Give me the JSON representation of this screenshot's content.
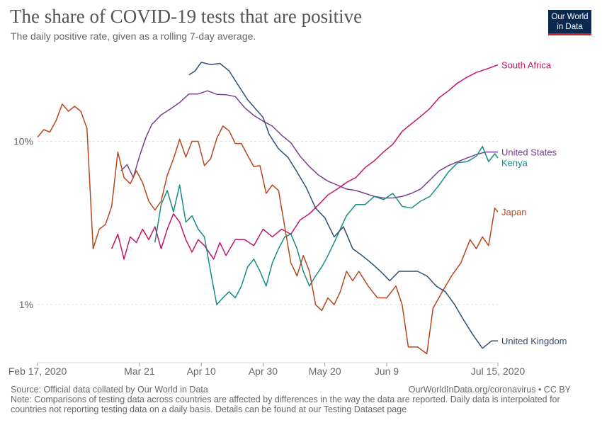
{
  "header": {
    "title": "The share of COVID-19 tests that are positive",
    "subtitle": "The daily positive rate, given as a rolling 7-day average."
  },
  "logo": {
    "line1": "Our World",
    "line2": "in Data"
  },
  "footer": {
    "source": "Source: Official data collated by Our World in Data",
    "url": "OurWorldInData.org/coronavirus • CC BY",
    "note_line1": "Note: Comparisons of testing data across countries are affected by differences in the way the data are reported. Daily data is interpolated for",
    "note_line2": "countries not reporting testing data on a daily basis. Details can be found at our Testing Dataset page"
  },
  "chart_data": {
    "type": "line",
    "y_scale": "log",
    "y_unit": "%",
    "ylim": [
      0.45,
      33
    ],
    "xlim": [
      "2020-02-17",
      "2020-07-15"
    ],
    "x_ticks": [
      {
        "date": "2020-02-17",
        "label": "Feb 17, 2020"
      },
      {
        "date": "2020-03-21",
        "label": "Mar 21"
      },
      {
        "date": "2020-04-10",
        "label": "Apr 10"
      },
      {
        "date": "2020-04-30",
        "label": "Apr 30"
      },
      {
        "date": "2020-05-20",
        "label": "May 20"
      },
      {
        "date": "2020-06-09",
        "label": "Jun 9"
      },
      {
        "date": "2020-07-15",
        "label": "Jul 15, 2020"
      }
    ],
    "y_ticks": [
      {
        "value": 1,
        "label": "1%"
      },
      {
        "value": 10,
        "label": "10%"
      }
    ],
    "grid": "horizontal dashed",
    "legend": "inline labels at line ends",
    "series": [
      {
        "name": "South Africa",
        "color": "#c4136d",
        "points": [
          [
            "2020-03-12",
            2.2
          ],
          [
            "2020-03-14",
            2.7
          ],
          [
            "2020-03-16",
            1.9
          ],
          [
            "2020-03-18",
            2.6
          ],
          [
            "2020-03-20",
            2.4
          ],
          [
            "2020-03-22",
            2.9
          ],
          [
            "2020-03-24",
            2.5
          ],
          [
            "2020-03-26",
            3.0
          ],
          [
            "2020-03-28",
            2.2
          ],
          [
            "2020-03-30",
            2.9
          ],
          [
            "2020-04-01",
            3.6
          ],
          [
            "2020-04-03",
            3.2
          ],
          [
            "2020-04-05",
            2.5
          ],
          [
            "2020-04-07",
            2.1
          ],
          [
            "2020-04-09",
            2.5
          ],
          [
            "2020-04-11",
            2.3
          ],
          [
            "2020-04-14",
            1.9
          ],
          [
            "2020-04-16",
            2.4
          ],
          [
            "2020-04-18",
            2.0
          ],
          [
            "2020-04-21",
            2.5
          ],
          [
            "2020-04-24",
            2.5
          ],
          [
            "2020-04-27",
            2.3
          ],
          [
            "2020-04-30",
            2.9
          ],
          [
            "2020-05-03",
            2.6
          ],
          [
            "2020-05-06",
            2.9
          ],
          [
            "2020-05-09",
            2.7
          ],
          [
            "2020-05-12",
            3.3
          ],
          [
            "2020-05-15",
            3.6
          ],
          [
            "2020-05-18",
            4.1
          ],
          [
            "2020-05-21",
            4.7
          ],
          [
            "2020-05-24",
            5.1
          ],
          [
            "2020-05-27",
            5.6
          ],
          [
            "2020-05-30",
            6.0
          ],
          [
            "2020-06-02",
            6.9
          ],
          [
            "2020-06-05",
            7.6
          ],
          [
            "2020-06-08",
            8.6
          ],
          [
            "2020-06-11",
            9.6
          ],
          [
            "2020-06-14",
            11.5
          ],
          [
            "2020-06-17",
            12.8
          ],
          [
            "2020-06-20",
            14.2
          ],
          [
            "2020-06-23",
            15.9
          ],
          [
            "2020-06-26",
            18.5
          ],
          [
            "2020-06-29",
            20.4
          ],
          [
            "2020-07-02",
            22.8
          ],
          [
            "2020-07-05",
            24.7
          ],
          [
            "2020-07-08",
            26.4
          ],
          [
            "2020-07-11",
            27.6
          ],
          [
            "2020-07-15",
            29.4
          ]
        ]
      },
      {
        "name": "United States",
        "color": "#7a3d91",
        "points": [
          [
            "2020-03-15",
            6.6
          ],
          [
            "2020-03-17",
            7.2
          ],
          [
            "2020-03-19",
            6.0
          ],
          [
            "2020-03-21",
            8.1
          ],
          [
            "2020-03-23",
            10.5
          ],
          [
            "2020-03-25",
            12.7
          ],
          [
            "2020-03-28",
            14.5
          ],
          [
            "2020-03-31",
            15.8
          ],
          [
            "2020-04-03",
            17.3
          ],
          [
            "2020-04-06",
            19.5
          ],
          [
            "2020-04-09",
            19.5
          ],
          [
            "2020-04-12",
            20.4
          ],
          [
            "2020-04-15",
            19.4
          ],
          [
            "2020-04-18",
            19.3
          ],
          [
            "2020-04-21",
            18.8
          ],
          [
            "2020-04-24",
            16.1
          ],
          [
            "2020-04-27",
            14.4
          ],
          [
            "2020-04-30",
            13.3
          ],
          [
            "2020-05-03",
            12.4
          ],
          [
            "2020-05-06",
            10.9
          ],
          [
            "2020-05-09",
            9.8
          ],
          [
            "2020-05-12",
            8.1
          ],
          [
            "2020-05-15",
            7.0
          ],
          [
            "2020-05-18",
            6.2
          ],
          [
            "2020-05-21",
            5.7
          ],
          [
            "2020-05-24",
            5.4
          ],
          [
            "2020-05-27",
            5.1
          ],
          [
            "2020-05-30",
            5.0
          ],
          [
            "2020-06-02",
            4.8
          ],
          [
            "2020-06-05",
            4.6
          ],
          [
            "2020-06-08",
            4.5
          ],
          [
            "2020-06-11",
            4.5
          ],
          [
            "2020-06-14",
            4.6
          ],
          [
            "2020-06-17",
            4.8
          ],
          [
            "2020-06-20",
            5.1
          ],
          [
            "2020-06-23",
            5.8
          ],
          [
            "2020-06-26",
            6.6
          ],
          [
            "2020-06-29",
            7.1
          ],
          [
            "2020-07-02",
            7.5
          ],
          [
            "2020-07-05",
            7.9
          ],
          [
            "2020-07-08",
            8.3
          ],
          [
            "2020-07-11",
            8.6
          ],
          [
            "2020-07-15",
            8.6
          ]
        ]
      },
      {
        "name": "Kenya",
        "color": "#178c83",
        "points": [
          [
            "2020-03-26",
            2.4
          ],
          [
            "2020-03-28",
            4.1
          ],
          [
            "2020-03-30",
            5.0
          ],
          [
            "2020-04-01",
            3.7
          ],
          [
            "2020-04-03",
            5.4
          ],
          [
            "2020-04-05",
            3.2
          ],
          [
            "2020-04-07",
            3.5
          ],
          [
            "2020-04-09",
            2.9
          ],
          [
            "2020-04-11",
            2.6
          ],
          [
            "2020-04-13",
            1.6
          ],
          [
            "2020-04-15",
            1.0
          ],
          [
            "2020-04-17",
            1.1
          ],
          [
            "2020-04-19",
            1.2
          ],
          [
            "2020-04-21",
            1.1
          ],
          [
            "2020-04-23",
            1.3
          ],
          [
            "2020-04-25",
            1.7
          ],
          [
            "2020-04-27",
            1.9
          ],
          [
            "2020-04-29",
            1.6
          ],
          [
            "2020-05-01",
            1.3
          ],
          [
            "2020-05-03",
            1.8
          ],
          [
            "2020-05-05",
            2.2
          ],
          [
            "2020-05-07",
            2.6
          ],
          [
            "2020-05-09",
            2.7
          ],
          [
            "2020-05-11",
            2.2
          ],
          [
            "2020-05-13",
            1.6
          ],
          [
            "2020-05-15",
            1.3
          ],
          [
            "2020-05-17",
            1.5
          ],
          [
            "2020-05-19",
            1.7
          ],
          [
            "2020-05-21",
            2.0
          ],
          [
            "2020-05-23",
            2.4
          ],
          [
            "2020-05-25",
            2.9
          ],
          [
            "2020-05-27",
            3.5
          ],
          [
            "2020-05-30",
            4.1
          ],
          [
            "2020-06-02",
            4.1
          ],
          [
            "2020-06-05",
            4.6
          ],
          [
            "2020-06-08",
            4.4
          ],
          [
            "2020-06-11",
            4.8
          ],
          [
            "2020-06-14",
            4.0
          ],
          [
            "2020-06-17",
            3.9
          ],
          [
            "2020-06-20",
            4.3
          ],
          [
            "2020-06-23",
            4.6
          ],
          [
            "2020-06-26",
            5.4
          ],
          [
            "2020-06-29",
            6.5
          ],
          [
            "2020-07-02",
            7.4
          ],
          [
            "2020-07-05",
            7.5
          ],
          [
            "2020-07-08",
            8.1
          ],
          [
            "2020-07-10",
            9.3
          ],
          [
            "2020-07-12",
            7.5
          ],
          [
            "2020-07-14",
            8.4
          ],
          [
            "2020-07-15",
            7.9
          ]
        ]
      },
      {
        "name": "Japan",
        "color": "#b8461c",
        "points": [
          [
            "2020-02-17",
            10.6
          ],
          [
            "2020-02-19",
            11.8
          ],
          [
            "2020-02-21",
            11.4
          ],
          [
            "2020-02-23",
            13.4
          ],
          [
            "2020-02-25",
            16.9
          ],
          [
            "2020-02-27",
            15.3
          ],
          [
            "2020-02-29",
            16.4
          ],
          [
            "2020-03-02",
            15.3
          ],
          [
            "2020-03-04",
            12.0
          ],
          [
            "2020-03-06",
            2.2
          ],
          [
            "2020-03-08",
            2.9
          ],
          [
            "2020-03-10",
            3.1
          ],
          [
            "2020-03-12",
            4.0
          ],
          [
            "2020-03-14",
            8.6
          ],
          [
            "2020-03-16",
            6.0
          ],
          [
            "2020-03-18",
            5.5
          ],
          [
            "2020-03-20",
            6.6
          ],
          [
            "2020-03-22",
            5.6
          ],
          [
            "2020-03-24",
            4.3
          ],
          [
            "2020-03-26",
            3.8
          ],
          [
            "2020-03-28",
            4.3
          ],
          [
            "2020-03-30",
            6.2
          ],
          [
            "2020-04-01",
            7.8
          ],
          [
            "2020-04-03",
            10.3
          ],
          [
            "2020-04-05",
            8.0
          ],
          [
            "2020-04-07",
            10.0
          ],
          [
            "2020-04-09",
            10.0
          ],
          [
            "2020-04-11",
            7.1
          ],
          [
            "2020-04-13",
            7.8
          ],
          [
            "2020-04-15",
            10.4
          ],
          [
            "2020-04-17",
            12.4
          ],
          [
            "2020-04-19",
            11.6
          ],
          [
            "2020-04-21",
            9.7
          ],
          [
            "2020-04-23",
            9.7
          ],
          [
            "2020-04-25",
            8.2
          ],
          [
            "2020-04-27",
            7.0
          ],
          [
            "2020-04-29",
            7.1
          ],
          [
            "2020-05-01",
            4.8
          ],
          [
            "2020-05-03",
            5.4
          ],
          [
            "2020-05-05",
            5.0
          ],
          [
            "2020-05-07",
            3.0
          ],
          [
            "2020-05-09",
            1.8
          ],
          [
            "2020-05-11",
            1.5
          ],
          [
            "2020-05-13",
            2.0
          ],
          [
            "2020-05-15",
            1.6
          ],
          [
            "2020-05-17",
            1.0
          ],
          [
            "2020-05-19",
            0.92
          ],
          [
            "2020-05-21",
            1.1
          ],
          [
            "2020-05-23",
            1.0
          ],
          [
            "2020-05-25",
            1.2
          ],
          [
            "2020-05-27",
            1.6
          ],
          [
            "2020-05-29",
            1.4
          ],
          [
            "2020-05-31",
            1.6
          ],
          [
            "2020-06-03",
            1.3
          ],
          [
            "2020-06-06",
            1.1
          ],
          [
            "2020-06-09",
            1.1
          ],
          [
            "2020-06-12",
            1.3
          ],
          [
            "2020-06-14",
            1.0
          ],
          [
            "2020-06-16",
            0.55
          ],
          [
            "2020-06-19",
            0.55
          ],
          [
            "2020-06-22",
            0.5
          ],
          [
            "2020-06-24",
            0.95
          ],
          [
            "2020-06-27",
            1.2
          ],
          [
            "2020-06-30",
            1.5
          ],
          [
            "2020-07-03",
            1.8
          ],
          [
            "2020-07-06",
            2.5
          ],
          [
            "2020-07-08",
            2.2
          ],
          [
            "2020-07-10",
            2.6
          ],
          [
            "2020-07-12",
            2.3
          ],
          [
            "2020-07-14",
            3.9
          ],
          [
            "2020-07-15",
            3.7
          ]
        ]
      },
      {
        "name": "United Kingdom",
        "color": "#2f4f6e",
        "points": [
          [
            "2020-04-06",
            25.5
          ],
          [
            "2020-04-08",
            27.0
          ],
          [
            "2020-04-10",
            30.5
          ],
          [
            "2020-04-13",
            29.5
          ],
          [
            "2020-04-16",
            30.0
          ],
          [
            "2020-04-19",
            27.0
          ],
          [
            "2020-04-22",
            22.0
          ],
          [
            "2020-04-25",
            18.0
          ],
          [
            "2020-04-28",
            15.5
          ],
          [
            "2020-04-30",
            14.0
          ],
          [
            "2020-05-02",
            11.0
          ],
          [
            "2020-05-05",
            9.0
          ],
          [
            "2020-05-08",
            8.0
          ],
          [
            "2020-05-11",
            6.5
          ],
          [
            "2020-05-14",
            5.2
          ],
          [
            "2020-05-17",
            3.9
          ],
          [
            "2020-05-20",
            3.4
          ],
          [
            "2020-05-23",
            2.6
          ],
          [
            "2020-05-26",
            3.0
          ],
          [
            "2020-05-29",
            2.2
          ],
          [
            "2020-06-01",
            2.0
          ],
          [
            "2020-06-04",
            1.8
          ],
          [
            "2020-06-07",
            1.6
          ],
          [
            "2020-06-10",
            1.4
          ],
          [
            "2020-06-13",
            1.6
          ],
          [
            "2020-06-16",
            1.6
          ],
          [
            "2020-06-19",
            1.6
          ],
          [
            "2020-06-22",
            1.5
          ],
          [
            "2020-06-25",
            1.3
          ],
          [
            "2020-06-28",
            1.2
          ],
          [
            "2020-07-01",
            1.0
          ],
          [
            "2020-07-04",
            0.8
          ],
          [
            "2020-07-07",
            0.65
          ],
          [
            "2020-07-10",
            0.54
          ],
          [
            "2020-07-13",
            0.6
          ],
          [
            "2020-07-15",
            0.6
          ]
        ]
      }
    ]
  }
}
